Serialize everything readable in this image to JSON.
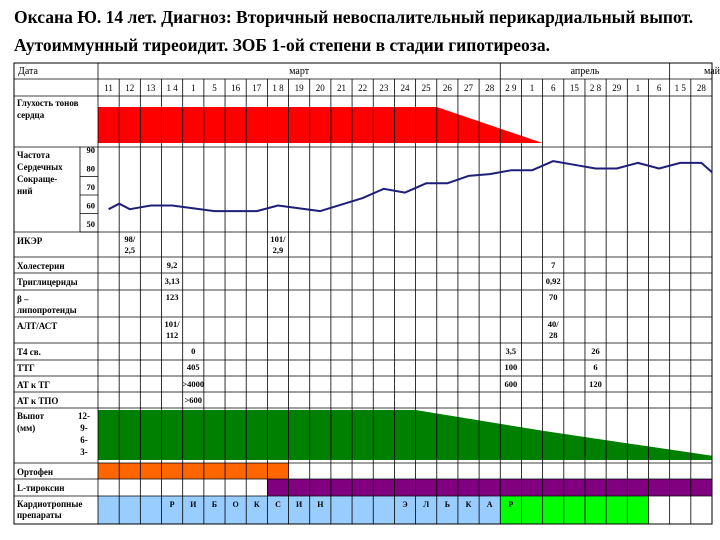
{
  "title": {
    "line1": "Оксана Ю. 14 лет. Диагноз: Вторичный невоспалительный перикардиальный выпот.",
    "line2": "Аутоиммунный тиреоидит. ЗОБ 1-ой степени в стадии гипотиреоза."
  },
  "table": {
    "date_label": "Дата",
    "months": [
      {
        "name": "март",
        "from": 0,
        "to": 19
      },
      {
        "name": "апрель",
        "from": 19,
        "to": 27
      },
      {
        "name": "май",
        "from": 27,
        "to": 31
      }
    ],
    "days": [
      "11",
      "12",
      "13",
      "1 4",
      "1",
      "5",
      "16",
      "17",
      "1 8",
      "19",
      "20",
      "21",
      "22",
      "23",
      "24",
      "25",
      "26",
      "27",
      "28",
      "2 9",
      "1",
      "6",
      "15",
      "2 8",
      "29",
      "1",
      "6",
      "1 5",
      "28"
    ],
    "rows": {
      "heart_sounds": [
        "Глухость тонов",
        "сердца"
      ],
      "hr": [
        "Частота",
        "Сердечных",
        "Сокраще-",
        "ний"
      ],
      "hr_ticks": [
        "90",
        "80",
        "70",
        "60",
        "50"
      ],
      "ecg": "ИКЭР",
      "chol": "Холестерин",
      "trig": "Триглицериды",
      "beta": [
        "β –",
        "липопротеиды"
      ],
      "alt": "АЛТ/АСТ",
      "t4": "Т4 св.",
      "ttg": "ТТГ",
      "attg": "АТ к ТГ",
      "attpo": "АТ к ТПО",
      "effusion": [
        "Выпот",
        "(мм)"
      ],
      "effusion_ticks": [
        "12-",
        "9-",
        "6-",
        "3-"
      ],
      "ortofen": "Ортофен",
      "ltyrox": "L-тироксин",
      "cardio": [
        "Кардиотропные",
        "препараты"
      ]
    },
    "values": {
      "ecg": [
        {
          "col": 1,
          "lines": [
            "98/",
            "2,5"
          ]
        },
        {
          "col": 8,
          "lines": [
            "101/",
            "2,9"
          ]
        }
      ],
      "chol": [
        {
          "col": 3,
          "text": "9,2"
        },
        {
          "col": 21,
          "text": "7"
        }
      ],
      "trig": [
        {
          "col": 3,
          "text": "3,13"
        },
        {
          "col": 21,
          "text": "0,92"
        }
      ],
      "beta": [
        {
          "col": 3,
          "text": "123"
        },
        {
          "col": 21,
          "text": "70"
        }
      ],
      "alt": [
        {
          "col": 3,
          "lines": [
            "101/",
            "112"
          ]
        },
        {
          "col": 21,
          "lines": [
            "40/",
            "28"
          ]
        }
      ],
      "t4": [
        {
          "col": 4,
          "text": "0"
        },
        {
          "col": 19,
          "text": "3,5"
        },
        {
          "col": 23,
          "text": "26"
        }
      ],
      "ttg": [
        {
          "col": 4,
          "text": "405"
        },
        {
          "col": 19,
          "text": "100"
        },
        {
          "col": 23,
          "text": "6"
        }
      ],
      "attg": [
        {
          "col": 4,
          "text": ">4000"
        },
        {
          "col": 19,
          "text": "600"
        },
        {
          "col": 23,
          "text": "120"
        }
      ],
      "attpo": [
        {
          "col": 4,
          "text": ">600"
        }
      ]
    },
    "cardio_letters": [
      "Р",
      "И",
      "Б",
      "О",
      "К",
      "С",
      "И",
      "Н",
      "",
      "",
      "",
      "Э",
      "Л",
      "Ь",
      "К",
      "А",
      "Р"
    ],
    "colors": {
      "heart": "#ff0000",
      "hr_line": "#1f1f7a",
      "effusion": "#008000",
      "ortofen": "#ff6600",
      "ltyrox": "#800080",
      "cardio_blue": "#99ccff",
      "cardio_green": "#00ff00"
    }
  },
  "chart_data": [
    {
      "type": "line",
      "title": "",
      "ylabel": "Частота Сердечных Сокращений",
      "ylim": [
        50,
        90
      ],
      "x_index": [
        0,
        0.5,
        1,
        2,
        3,
        5,
        7,
        8,
        10,
        12,
        13,
        14,
        15,
        16,
        17,
        18,
        19,
        20,
        21,
        22,
        23,
        24,
        25,
        26,
        27,
        28,
        28.5,
        29
      ],
      "values": [
        58,
        61,
        58,
        60,
        60,
        57,
        57,
        60,
        57,
        64,
        69,
        67,
        72,
        72,
        76,
        77,
        79,
        79,
        84,
        82,
        80,
        80,
        83,
        80,
        83,
        83,
        78,
        78
      ]
    },
    {
      "type": "area",
      "title": "",
      "ylabel": "Глухость тонов сердца",
      "x_index": [
        0,
        16,
        21
      ],
      "values": [
        1,
        1,
        0
      ]
    },
    {
      "type": "area",
      "title": "",
      "ylabel": "Выпот (мм)",
      "x_index": [
        0,
        15,
        21,
        29
      ],
      "values": [
        12,
        12,
        7,
        1
      ]
    }
  ]
}
